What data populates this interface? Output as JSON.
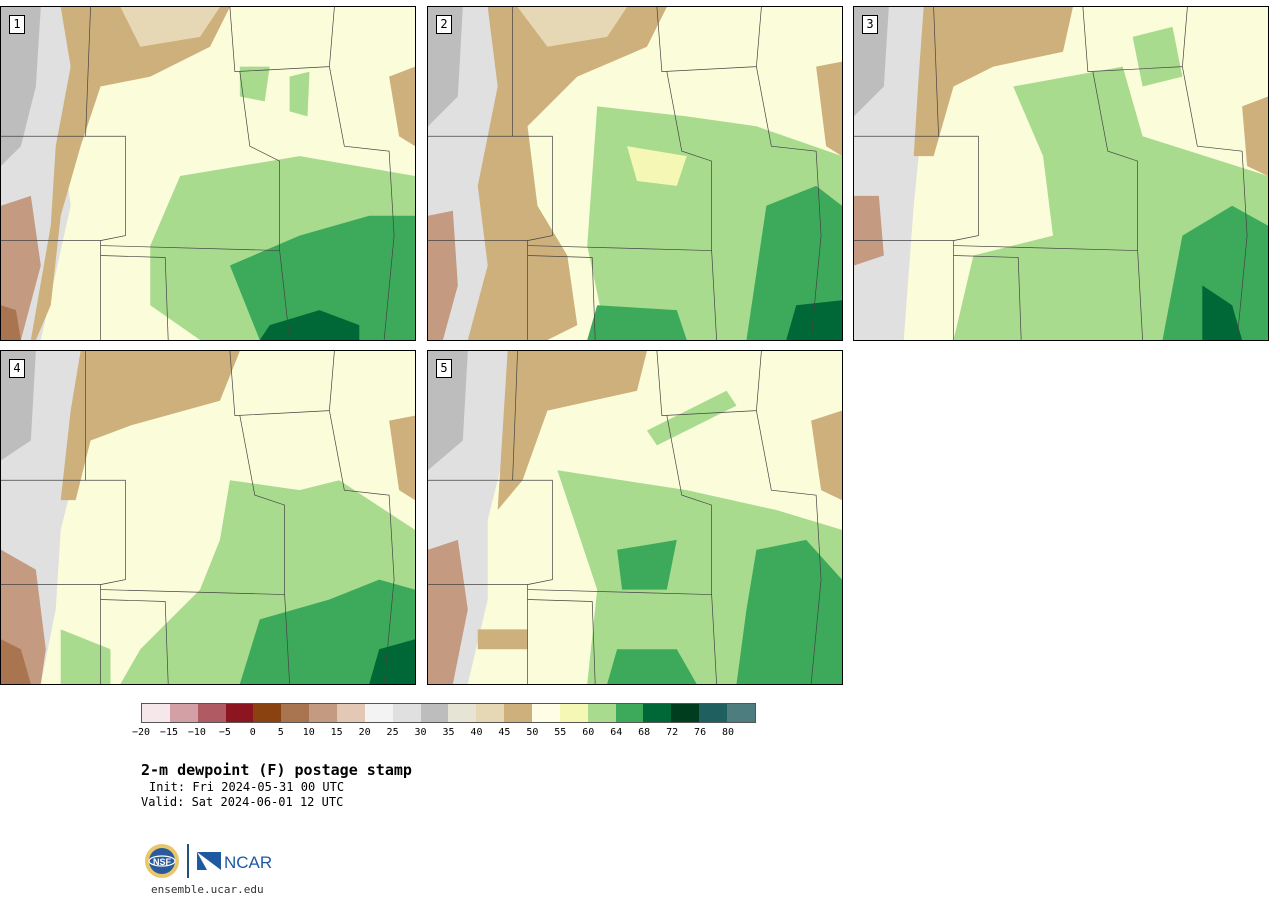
{
  "panels": [
    {
      "label": "1"
    },
    {
      "label": "2"
    },
    {
      "label": "3"
    },
    {
      "label": "4"
    },
    {
      "label": "5"
    }
  ],
  "colorbar": {
    "colors": [
      "#f6e8ea",
      "#d3a0a6",
      "#b05a63",
      "#8c1520",
      "#8a4210",
      "#a97550",
      "#c49a80",
      "#e2c8b5",
      "#f3f3f3",
      "#e0e0e0",
      "#bdbdbd",
      "#e6e4d4",
      "#e6d8b4",
      "#cdb07b",
      "#fffde6",
      "#f5f8b4",
      "#a8db8e",
      "#3daa5b",
      "#006837",
      "#003c1e",
      "#1f5f5f",
      "#4e7d80"
    ],
    "ticks": [
      "−20",
      "−15",
      "−10",
      "−5",
      "0",
      "5",
      "10",
      "15",
      "20",
      "25",
      "30",
      "35",
      "40",
      "45",
      "50",
      "55",
      "60",
      "64",
      "68",
      "72",
      "76",
      "80"
    ]
  },
  "caption": {
    "title": "2-m dewpoint (F) postage stamp",
    "init": "Init: Fri 2024-05-31 00 UTC",
    "valid": "Valid: Sat 2024-06-01 12 UTC"
  },
  "logos": {
    "nsf": "NSF",
    "ncar": "NCAR",
    "site": "ensemble.ucar.edu"
  },
  "map_colors": {
    "ocean_base": "#fbfcd9",
    "light_yellow": "#fffde6",
    "pale_yellow": "#f5f8b4",
    "light_green": "#a8db8e",
    "green": "#3daa5b",
    "dark_green": "#006837",
    "tan": "#cdb07b",
    "light_tan": "#e6d8b4",
    "gray_light": "#e0e0e0",
    "gray": "#bdbdbd",
    "brown": "#c49a80",
    "dark_brown": "#a97550"
  }
}
